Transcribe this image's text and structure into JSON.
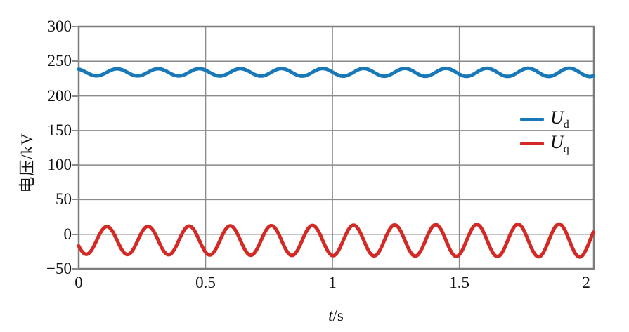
{
  "style": {
    "background": "#ffffff",
    "grid_color": "#8a8a8a",
    "axis_color": "#7d7d7d",
    "text_color": "#111111",
    "ud_color": "#1878b8",
    "uq_color": "#d42a26"
  },
  "axes": {
    "x": {
      "label_italic": "t",
      "label_rest": "/s"
    },
    "y": {
      "label": "电压/kV"
    }
  },
  "legend": {
    "items": [
      {
        "symbol": "U",
        "subscript": "d",
        "color": "#1878b8"
      },
      {
        "symbol": "U",
        "subscript": "q",
        "color": "#d42a26"
      }
    ]
  },
  "chart_data": {
    "type": "line",
    "title": "",
    "xlabel": "t/s",
    "ylabel": "电压/kV",
    "xlim": [
      0,
      2.03
    ],
    "ylim": [
      -50,
      300
    ],
    "grid": true,
    "legend_position": "inside-right-middle",
    "xticks": [
      {
        "v": 0,
        "label": "0"
      },
      {
        "v": 0.5,
        "label": "0.5"
      },
      {
        "v": 1,
        "label": "1"
      },
      {
        "v": 1.5,
        "label": "1.5"
      },
      {
        "v": 2,
        "label": "2"
      }
    ],
    "x_gridlines": [
      0.5,
      1,
      1.5
    ],
    "yticks": [
      {
        "v": 300,
        "label": "300"
      },
      {
        "v": 250,
        "label": "250"
      },
      {
        "v": 200,
        "label": "200"
      },
      {
        "v": 150,
        "label": "150"
      },
      {
        "v": 100,
        "label": "100"
      },
      {
        "v": 50,
        "label": "50"
      },
      {
        "v": 0,
        "label": "0"
      },
      {
        "v": -50,
        "label": "−50"
      }
    ],
    "series": [
      {
        "name": "Ud",
        "color": "#1878b8",
        "line_width": 5,
        "waveform": {
          "shape": "sine",
          "mean_kV": 234,
          "amplitude_kV_at_t0": 5,
          "amplitude_kV_at_t2": 6,
          "period_s": 0.162,
          "first_peak_t_s": 0.151
        },
        "approx_range_kV": [
          228,
          240
        ]
      },
      {
        "name": "Uq",
        "color": "#d42a26",
        "line_width": 5,
        "waveform": {
          "shape": "sine",
          "mean_kV": -9,
          "amplitude_kV_at_t0": 20,
          "amplitude_kV_at_t2": 24,
          "period_s": 0.162,
          "first_peak_t_s": 0.111
        },
        "approx_range_kV": [
          -33,
          16
        ]
      }
    ]
  }
}
